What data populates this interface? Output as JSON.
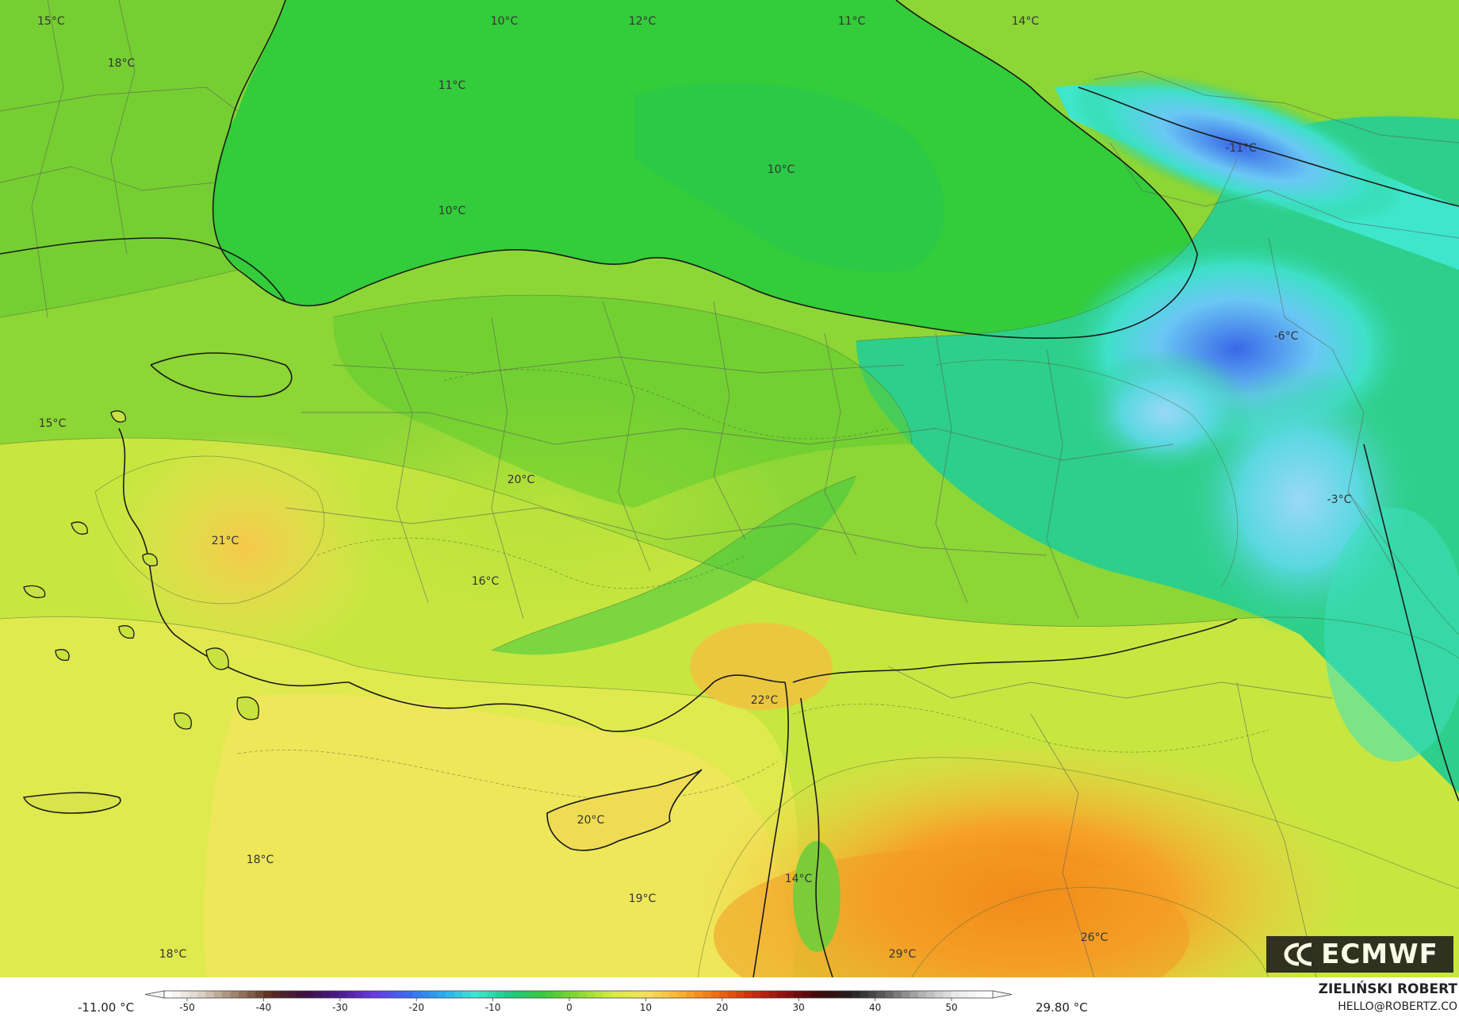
{
  "map": {
    "labels": [
      {
        "id": "t1",
        "text": "15°C"
      },
      {
        "id": "t2",
        "text": "10°C"
      },
      {
        "id": "t3",
        "text": "12°C"
      },
      {
        "id": "t4",
        "text": "11°C"
      },
      {
        "id": "t5",
        "text": "14°C"
      },
      {
        "id": "t6",
        "text": "18°C"
      },
      {
        "id": "t7",
        "text": "11°C"
      },
      {
        "id": "t8",
        "text": "-11°C"
      },
      {
        "id": "t9",
        "text": "10°C"
      },
      {
        "id": "t10",
        "text": "10°C"
      },
      {
        "id": "t11",
        "text": "15°C"
      },
      {
        "id": "t12",
        "text": "-6°C"
      },
      {
        "id": "t13",
        "text": "20°C"
      },
      {
        "id": "t14",
        "text": "-3°C"
      },
      {
        "id": "t15",
        "text": "21°C"
      },
      {
        "id": "t16",
        "text": "16°C"
      },
      {
        "id": "t17",
        "text": "22°C"
      },
      {
        "id": "t18",
        "text": "20°C"
      },
      {
        "id": "t19",
        "text": "18°C"
      },
      {
        "id": "t20",
        "text": "14°C"
      },
      {
        "id": "t21",
        "text": "19°C"
      },
      {
        "id": "t22",
        "text": "26°C"
      },
      {
        "id": "t23",
        "text": "18°C"
      },
      {
        "id": "t24",
        "text": "29°C"
      }
    ]
  },
  "legend": {
    "min_label": "-11.00 °C",
    "max_label": "29.80 °C",
    "ticks": [
      "-50",
      "-40",
      "-30",
      "-20",
      "-10",
      "0",
      "10",
      "20",
      "30",
      "40",
      "50"
    ],
    "colors": [
      "#ffffff",
      "#d8cfc2",
      "#9b7f66",
      "#5a2d1e",
      "#3a0f3f",
      "#4a1a8a",
      "#6a3ae0",
      "#3a6af0",
      "#2aa8f0",
      "#3ee8d0",
      "#1cc880",
      "#3cc83c",
      "#8ad830",
      "#d8ec40",
      "#f8e060",
      "#f8b030",
      "#f07010",
      "#d03010",
      "#901010",
      "#400808",
      "#202020",
      "#606060",
      "#b0b0b0",
      "#e8e8e8",
      "#ffffff"
    ]
  },
  "branding": {
    "logo_text": "ECMWF",
    "author_name": "ZIELIŃSKI ROBERT",
    "author_email": "HELLO@ROBERTZ.CO"
  }
}
